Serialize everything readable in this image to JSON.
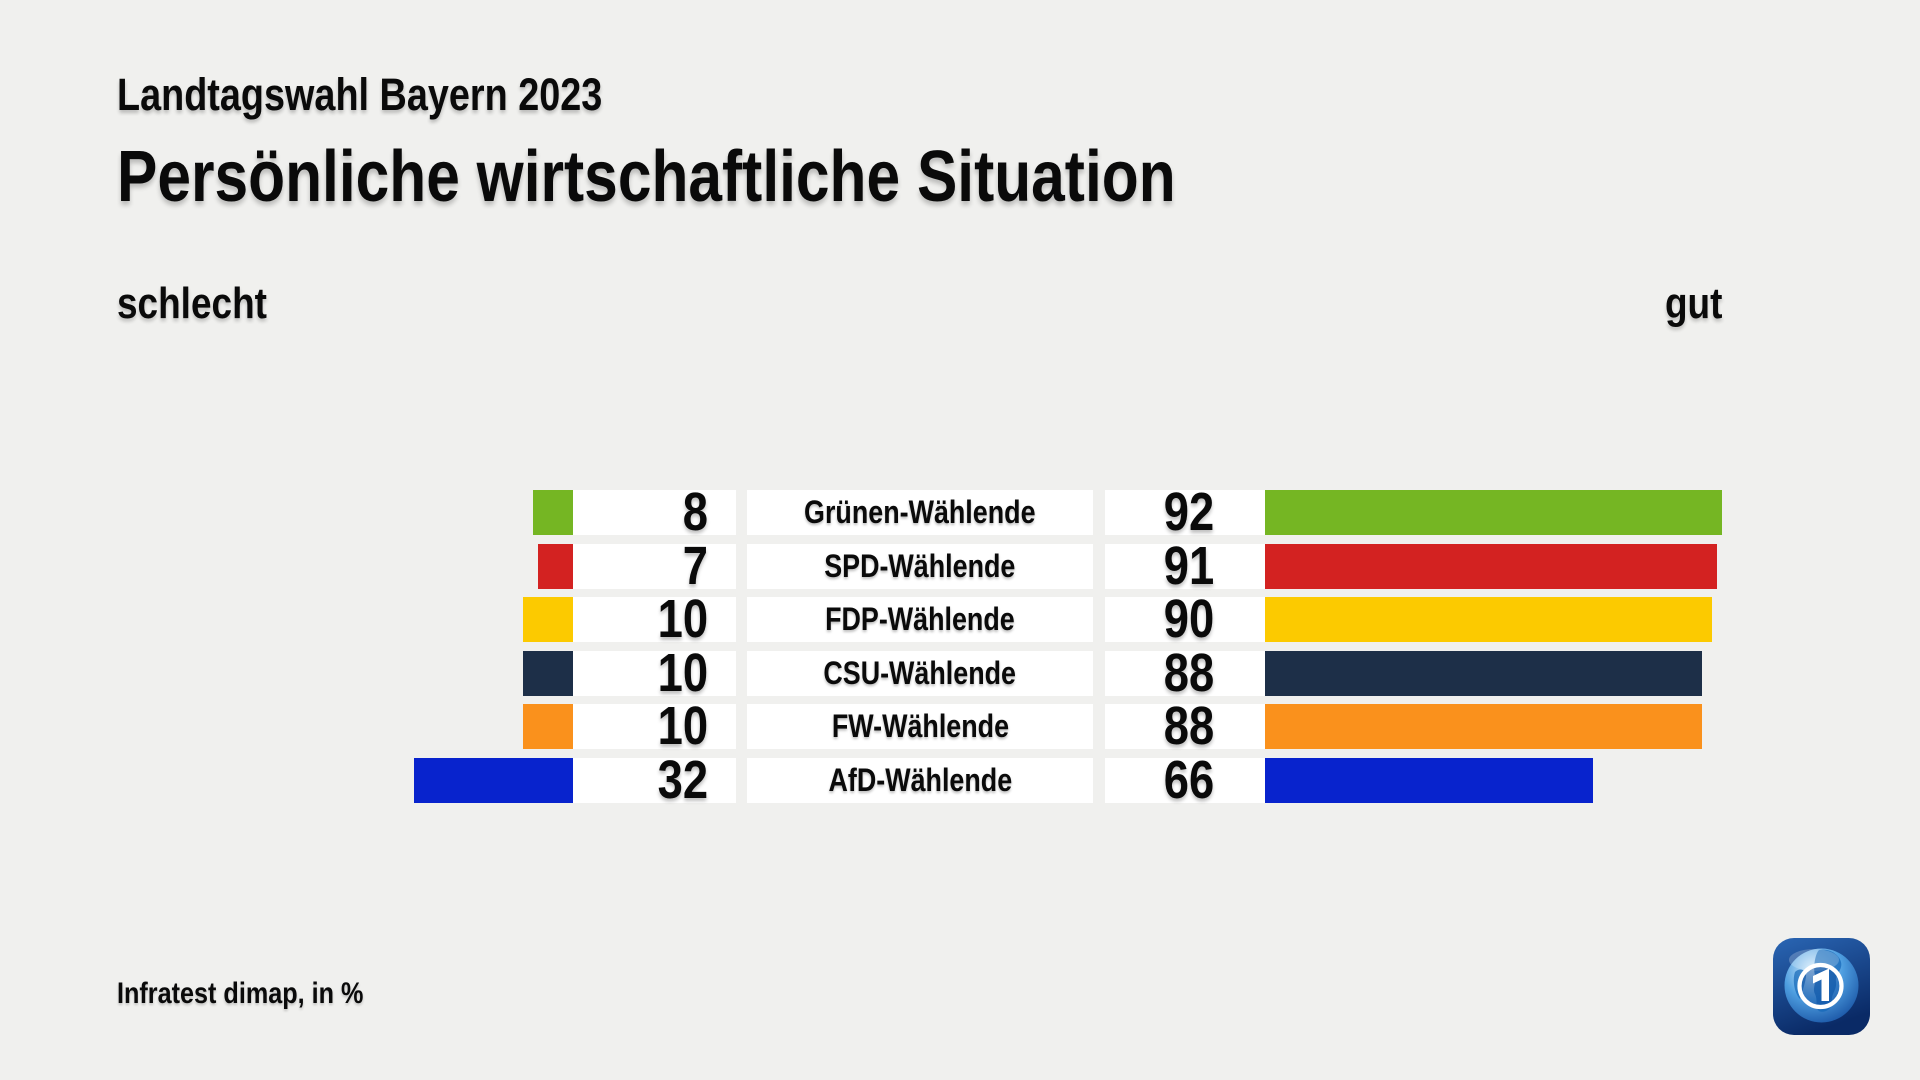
{
  "header": {
    "kicker": "Landtagswahl Bayern 2023",
    "title": "Persönliche wirtschaftliche Situation"
  },
  "axis": {
    "left_label": "schlecht",
    "right_label": "gut"
  },
  "chart_data": {
    "type": "bar",
    "subtype": "diverging-horizontal",
    "title": "Persönliche wirtschaftliche Situation",
    "subtitle": "Landtagswahl Bayern 2023",
    "unit": "%",
    "value_range": [
      0,
      100
    ],
    "left_axis_label": "schlecht",
    "right_axis_label": "gut",
    "grid": false,
    "legend": "none",
    "categories": [
      "Grünen-Wählende",
      "SPD-Wählende",
      "FDP-Wählende",
      "CSU-Wählende",
      "FW-Wählende",
      "AfD-Wählende"
    ],
    "series": [
      {
        "name": "schlecht",
        "values": [
          8,
          7,
          10,
          10,
          10,
          32
        ]
      },
      {
        "name": "gut",
        "values": [
          92,
          91,
          90,
          88,
          88,
          66
        ]
      }
    ],
    "rows": [
      {
        "label": "Grünen-Wählende",
        "schlecht": 8,
        "gut": 92,
        "color": "#75b623"
      },
      {
        "label": "SPD-Wählende",
        "schlecht": 7,
        "gut": 91,
        "color": "#d32221"
      },
      {
        "label": "FDP-Wählende",
        "schlecht": 10,
        "gut": 90,
        "color": "#fcca00"
      },
      {
        "label": "CSU-Wählende",
        "schlecht": 10,
        "gut": 88,
        "color": "#1d2f48"
      },
      {
        "label": "FW-Wählende",
        "schlecht": 10,
        "gut": 88,
        "color": "#fa911c"
      },
      {
        "label": "AfD-Wählende",
        "schlecht": 32,
        "gut": 66,
        "color": "#0823cd"
      }
    ]
  },
  "footer": {
    "source": "Infratest dimap, in %"
  },
  "logo": {
    "icon": "ard-one-globe-icon",
    "label": "ARD",
    "tile_color": "#0b2d6b",
    "globe_color": "#3d8fd6"
  },
  "colors": {
    "background": "#f0f0ee",
    "row_background": "#ffffff",
    "text": "#0a0a0a"
  }
}
